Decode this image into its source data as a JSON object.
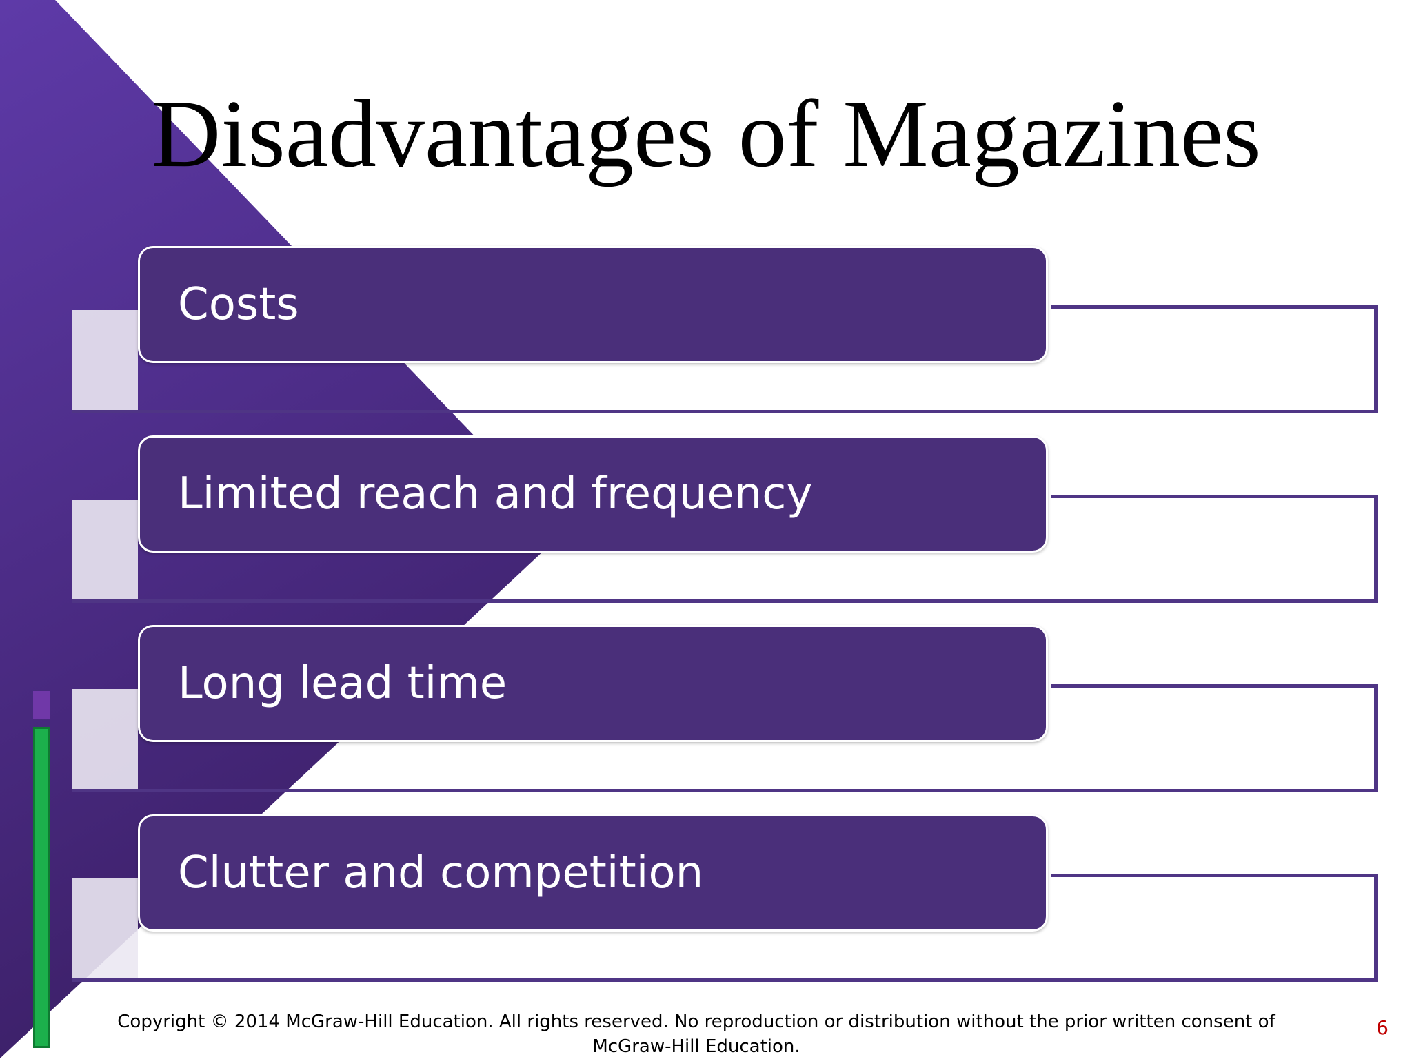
{
  "slide": {
    "title": "Disadvantages of Magazines",
    "items": [
      {
        "label": "Costs"
      },
      {
        "label": "Limited reach and frequency"
      },
      {
        "label": "Long lead time"
      },
      {
        "label": "Clutter and competition"
      }
    ],
    "footer": "Copyright © 2014 McGraw-Hill Education.  All rights reserved. No reproduction or distribution without the prior written consent of McGraw-Hill Education.",
    "page_number": "6"
  },
  "colors": {
    "purple_dark": "#3b1f66",
    "purple_light": "#5e3aa8",
    "box_fill": "#4a2f7a",
    "outline": "#4f3585",
    "accent_green": "#1cb04c",
    "page_number": "#c00000"
  }
}
